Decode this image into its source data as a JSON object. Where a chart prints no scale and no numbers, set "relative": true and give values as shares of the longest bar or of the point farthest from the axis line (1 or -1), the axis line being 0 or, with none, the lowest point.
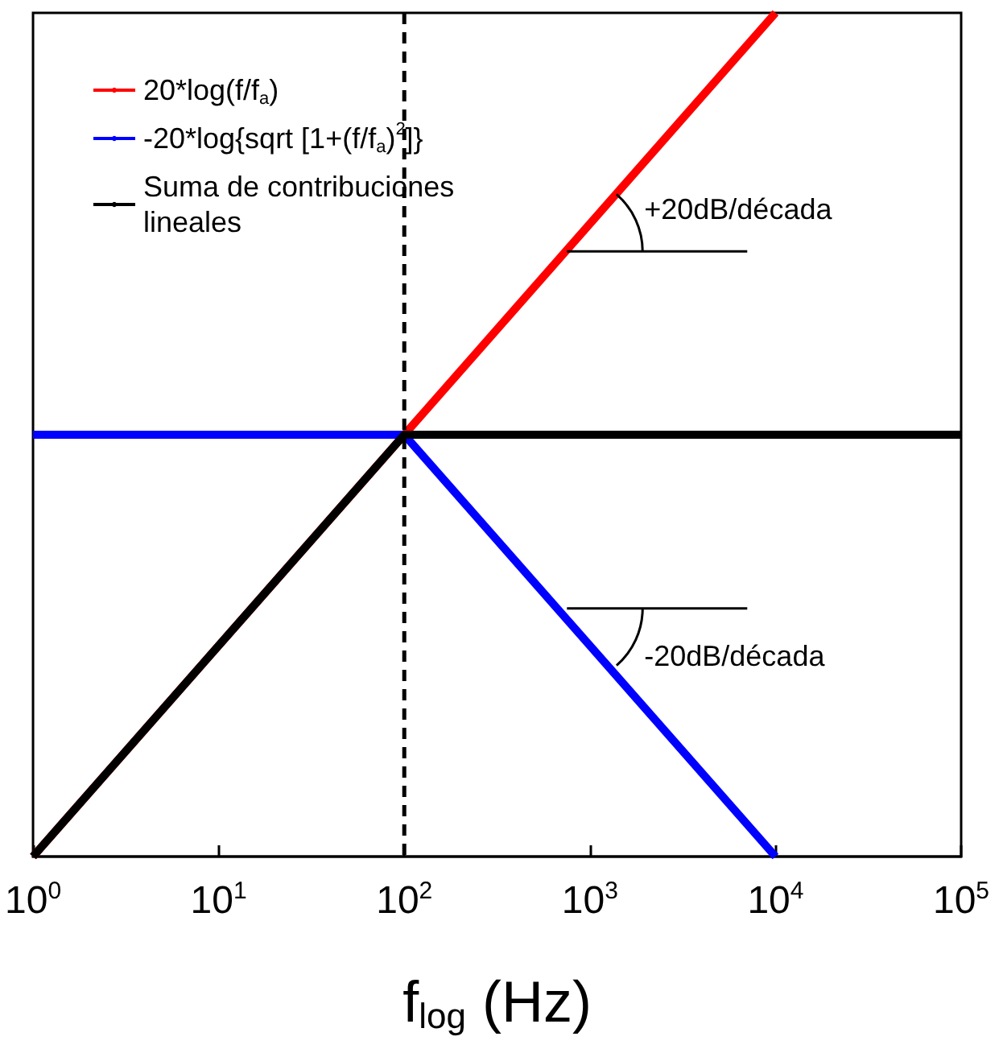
{
  "chart_data": {
    "type": "line",
    "relative": true,
    "xlabel": "f$_{log}$ (Hz)",
    "log": "x",
    "xlim": [
      1,
      100000
    ],
    "xticks": [
      {
        "value": 1,
        "label": "10$^{0}$"
      },
      {
        "value": 10,
        "label": "10$^{1}$"
      },
      {
        "value": 100,
        "label": "10$^{2}$"
      },
      {
        "value": 1000,
        "label": "10$^{3}$"
      },
      {
        "value": 10000,
        "label": "10$^{4}$"
      },
      {
        "value": 100000,
        "label": "10$^{5}$"
      }
    ],
    "series": [
      {
        "name": "20*log(f/f$_{a}$)",
        "color": "#ff0000",
        "x": [
          1,
          10000
        ],
        "values": [
          0,
          1
        ]
      },
      {
        "name": "-20*log{sqrt [1+(f/f$_{a}$)$^{2}$]}",
        "color": "#0000ff",
        "x": [
          1,
          100,
          10000
        ],
        "values": [
          0.5,
          0.5,
          0
        ]
      },
      {
        "name": "Suma de contribuciones lineales",
        "color": "#000000",
        "x": [
          1,
          100,
          100000
        ],
        "values": [
          0,
          0.5,
          0.5
        ]
      }
    ],
    "ref_lines": [
      {
        "axis": "x",
        "value": 100,
        "color": "#000000",
        "line_style": "dashed"
      }
    ],
    "annotations": [
      "+20dB/década",
      "-20dB/década"
    ],
    "legend": "top left",
    "grid": false,
    "marker": "none",
    "line_style": "solid"
  }
}
